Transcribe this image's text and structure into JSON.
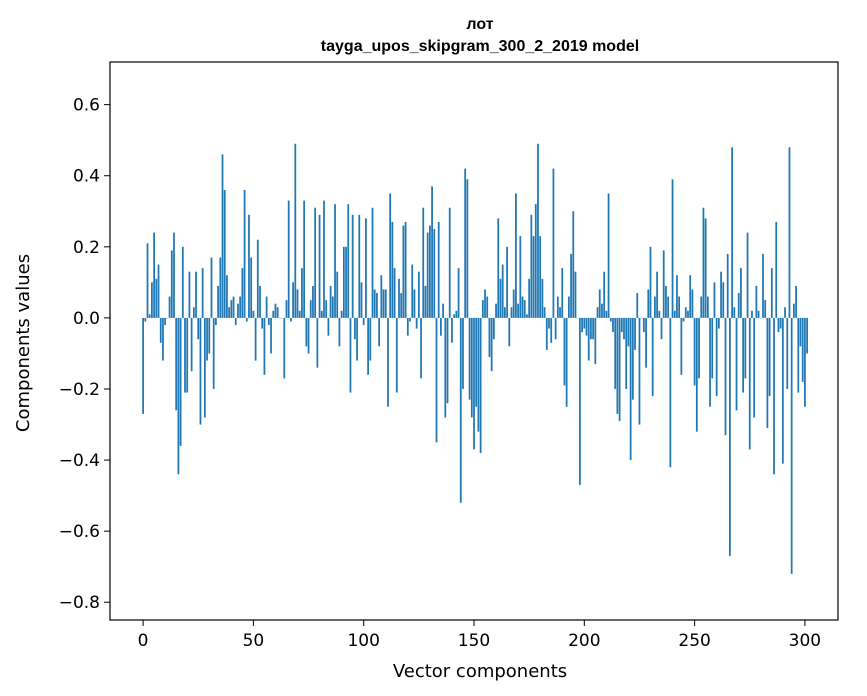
{
  "chart_data": {
    "type": "bar",
    "title": "лот",
    "subtitle": "tayga_upos_skipgram_300_2_2019 model",
    "xlabel": "Vector components",
    "ylabel": "Components values",
    "xlim": [
      -15,
      315
    ],
    "ylim": [
      -0.85,
      0.72
    ],
    "xticks": [
      0,
      50,
      100,
      150,
      200,
      250,
      300
    ],
    "xtick_labels": [
      "0",
      "50",
      "100",
      "150",
      "200",
      "250",
      "300"
    ],
    "yticks": [
      -0.8,
      -0.6,
      -0.4,
      -0.2,
      0.0,
      0.2,
      0.4,
      0.6
    ],
    "ytick_labels": [
      "−0.8",
      "−0.6",
      "−0.4",
      "−0.2",
      "0.0",
      "0.2",
      "0.4",
      "0.6"
    ],
    "bar_color": "#1f77b4",
    "grid": false,
    "values": [
      -0.27,
      -0.01,
      0.21,
      0.01,
      0.1,
      0.24,
      0.11,
      0.15,
      -0.07,
      -0.12,
      -0.02,
      0.0,
      0.06,
      0.19,
      0.24,
      -0.26,
      -0.44,
      -0.36,
      0.2,
      -0.21,
      -0.21,
      0.13,
      -0.15,
      0.03,
      0.13,
      -0.06,
      -0.3,
      0.14,
      -0.28,
      -0.12,
      -0.1,
      0.17,
      -0.2,
      -0.02,
      0.09,
      0.17,
      0.46,
      0.36,
      0.12,
      0.03,
      0.05,
      0.06,
      -0.02,
      0.04,
      0.06,
      0.14,
      0.36,
      -0.01,
      0.29,
      0.17,
      0.02,
      -0.12,
      0.22,
      0.09,
      -0.03,
      -0.16,
      0.06,
      -0.02,
      -0.1,
      0.02,
      0.04,
      0.03,
      0.0,
      0.0,
      -0.17,
      0.05,
      0.33,
      -0.01,
      0.1,
      0.49,
      0.08,
      0.02,
      0.14,
      0.33,
      -0.08,
      -0.1,
      0.05,
      0.09,
      0.31,
      -0.14,
      0.29,
      0.02,
      0.33,
      0.05,
      -0.05,
      0.09,
      0.06,
      0.32,
      0.13,
      -0.08,
      0.02,
      0.2,
      0.2,
      0.32,
      -0.21,
      0.29,
      -0.06,
      -0.12,
      0.29,
      0.1,
      -0.02,
      0.28,
      -0.16,
      -0.12,
      0.31,
      0.08,
      0.07,
      -0.08,
      0.12,
      0.08,
      0.08,
      -0.25,
      0.35,
      0.27,
      0.14,
      -0.21,
      0.11,
      0.07,
      0.26,
      0.27,
      -0.05,
      -0.01,
      0.15,
      0.08,
      -0.03,
      0.13,
      -0.17,
      0.31,
      0.09,
      0.24,
      0.26,
      0.37,
      0.25,
      -0.35,
      0.27,
      -0.05,
      0.04,
      -0.28,
      -0.24,
      0.31,
      -0.07,
      0.01,
      0.02,
      0.14,
      -0.52,
      -0.2,
      0.42,
      0.39,
      -0.23,
      -0.28,
      -0.37,
      -0.25,
      -0.32,
      -0.38,
      0.05,
      0.08,
      0.06,
      -0.11,
      -0.15,
      -0.06,
      0.04,
      0.28,
      0.11,
      0.15,
      0.03,
      0.2,
      -0.08,
      0.03,
      0.08,
      0.35,
      0.04,
      0.23,
      0.06,
      0.05,
      0.01,
      0.11,
      0.29,
      0.23,
      0.32,
      0.49,
      0.23,
      0.11,
      0.03,
      -0.09,
      -0.03,
      -0.07,
      0.42,
      -0.06,
      0.06,
      0.03,
      0.14,
      -0.19,
      -0.25,
      0.06,
      0.18,
      0.3,
      0.13,
      0.0,
      -0.47,
      -0.04,
      -0.03,
      -0.05,
      -0.12,
      -0.06,
      -0.06,
      -0.13,
      0.03,
      0.08,
      0.04,
      0.13,
      0.02,
      0.35,
      -0.01,
      -0.04,
      -0.2,
      -0.27,
      -0.29,
      -0.04,
      -0.06,
      -0.2,
      -0.08,
      -0.4,
      -0.23,
      -0.09,
      0.07,
      -0.3,
      0.0,
      -0.04,
      -0.14,
      0.08,
      0.2,
      -0.22,
      0.06,
      0.13,
      0.02,
      -0.06,
      0.19,
      0.09,
      0.06,
      -0.42,
      0.39,
      0.02,
      0.12,
      0.06,
      -0.16,
      -0.01,
      0.03,
      0.02,
      0.12,
      0.08,
      -0.19,
      -0.32,
      -0.17,
      0.06,
      0.31,
      0.28,
      0.06,
      -0.25,
      -0.17,
      0.1,
      -0.22,
      -0.03,
      0.13,
      0.1,
      -0.33,
      0.18,
      -0.67,
      0.48,
      0.03,
      -0.26,
      0.07,
      0.14,
      -0.21,
      -0.17,
      0.24,
      -0.37,
      0.02,
      -0.28,
      0.09,
      0.02,
      0.0,
      0.18,
      0.05,
      -0.31,
      -0.22,
      0.14,
      -0.44,
      0.27,
      -0.04,
      -0.03,
      -0.41,
      0.03,
      -0.2,
      0.48,
      -0.72,
      0.04,
      0.09,
      -0.21,
      -0.08,
      -0.18,
      -0.25,
      -0.1
    ]
  }
}
